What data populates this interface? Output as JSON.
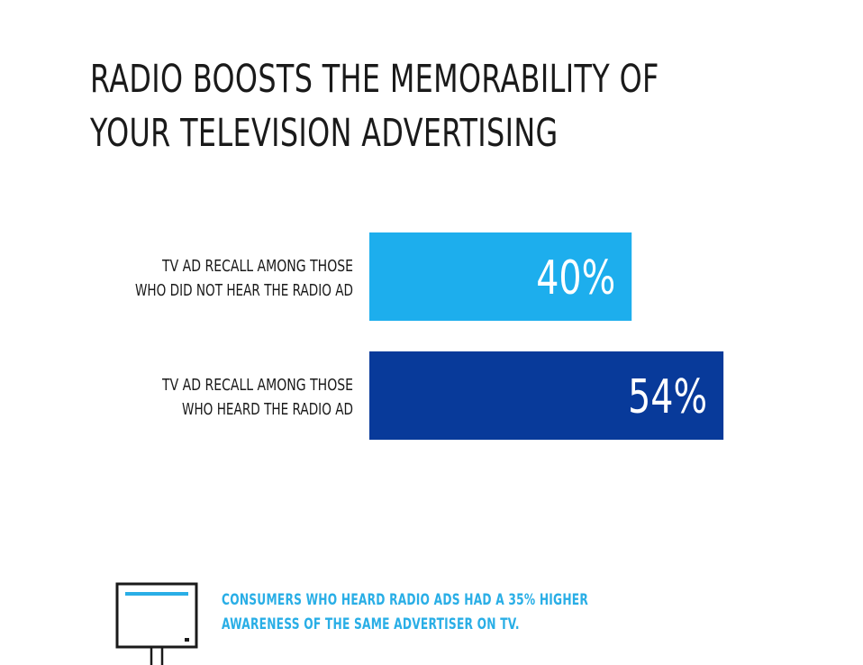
{
  "title": {
    "line1": "RADIO BOOSTS THE MEMORABILITY OF",
    "line2": "YOUR TELEVISION ADVERTISING"
  },
  "chart_data": {
    "type": "bar",
    "orientation": "horizontal",
    "categories": [
      [
        "TV AD RECALL AMONG THOSE",
        "WHO DID NOT HEAR THE RADIO AD"
      ],
      [
        "TV AD RECALL AMONG THOSE",
        "WHO HEARD THE RADIO AD"
      ]
    ],
    "values": [
      40,
      54
    ],
    "value_labels": [
      "40%",
      "54%"
    ],
    "colors": [
      "#1daeed",
      "#083a9a"
    ],
    "xlim": [
      0,
      100
    ],
    "grid": false,
    "legend": "none"
  },
  "footnote": {
    "line1": "CONSUMERS WHO HEARD RADIO ADS HAD A 35% HIGHER",
    "line2": "AWARENESS OF THE SAME ADVERTISER ON TV."
  },
  "icons": {
    "footer": "tv-icon"
  }
}
